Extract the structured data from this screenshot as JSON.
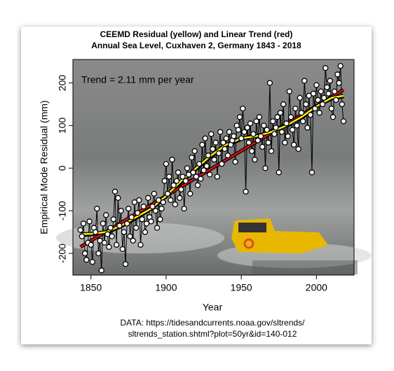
{
  "chart_data": {
    "type": "line",
    "title": "CEEMD Residual (yellow) and Linear Trend (red)",
    "subtitle": "Annual Sea Level, Cuxhaven 2, Germany 1843 - 2018",
    "x_label": "Year",
    "y_label": "Empirical Mode Residual (mm)",
    "annotation": "Trend = 2.11 mm per year",
    "source": [
      "DATA: https://tidesandcurrents.noaa.gov/sltrends/",
      "sltrends_station.shtml?plot=50yr&id=140-012"
    ],
    "xlim": [
      1838,
      2025
    ],
    "xticks": [
      1850,
      1900,
      1950,
      2000
    ],
    "ylim": [
      -251,
      255
    ],
    "yticks": [
      -200,
      -100,
      0,
      100,
      200
    ],
    "series": [
      {
        "color": "#000000",
        "x": [
          1843,
          1844,
          1845,
          1846,
          1847,
          1848,
          1849,
          1850,
          1851,
          1852,
          1853,
          1854,
          1855,
          1856,
          1857,
          1858,
          1859,
          1860,
          1861,
          1862,
          1863,
          1864,
          1865,
          1866,
          1867,
          1868,
          1869,
          1870,
          1871,
          1872,
          1873,
          1874,
          1875,
          1876,
          1877,
          1878,
          1879,
          1880,
          1881,
          1882,
          1883,
          1884,
          1885,
          1886,
          1887,
          1888,
          1889,
          1890,
          1891,
          1892,
          1893,
          1894,
          1895,
          1896,
          1897,
          1898,
          1899,
          1900,
          1901,
          1902,
          1903,
          1904,
          1905,
          1906,
          1907,
          1908,
          1909,
          1910,
          1911,
          1912,
          1913,
          1914,
          1915,
          1916,
          1917,
          1918,
          1919,
          1920,
          1921,
          1922,
          1923,
          1924,
          1925,
          1926,
          1927,
          1928,
          1929,
          1930,
          1931,
          1932,
          1933,
          1934,
          1935,
          1936,
          1937,
          1938,
          1939,
          1940,
          1941,
          1942,
          1943,
          1944,
          1945,
          1946,
          1947,
          1948,
          1949,
          1950,
          1951,
          1952,
          1953,
          1954,
          1955,
          1956,
          1957,
          1958,
          1959,
          1960,
          1961,
          1962,
          1963,
          1964,
          1965,
          1966,
          1967,
          1968,
          1969,
          1970,
          1971,
          1972,
          1973,
          1974,
          1975,
          1976,
          1977,
          1978,
          1979,
          1980,
          1981,
          1982,
          1983,
          1984,
          1985,
          1986,
          1987,
          1988,
          1989,
          1990,
          1991,
          1992,
          1993,
          1994,
          1995,
          1996,
          1997,
          1998,
          1999,
          2000,
          2001,
          2002,
          2003,
          2004,
          2005,
          2006,
          2007,
          2008,
          2009,
          2010,
          2011,
          2012,
          2013,
          2014,
          2015,
          2016,
          2017,
          2018
        ],
        "values": [
          -145,
          -160,
          -130,
          -200,
          -215,
          -175,
          -125,
          -180,
          -220,
          -140,
          -150,
          -95,
          -200,
          -170,
          -240,
          -130,
          -175,
          -110,
          -155,
          -185,
          -140,
          -160,
          -120,
          -55,
          -180,
          -70,
          -135,
          -100,
          -190,
          -150,
          -225,
          -130,
          -95,
          -160,
          -115,
          -170,
          -80,
          -140,
          -105,
          -75,
          -180,
          -120,
          -90,
          -150,
          -130,
          -70,
          -115,
          -125,
          -90,
          -60,
          -100,
          -140,
          -75,
          -120,
          -95,
          -80,
          -30,
          10,
          -60,
          -20,
          -75,
          20,
          -40,
          -85,
          -30,
          -10,
          -70,
          -50,
          -20,
          -95,
          -30,
          0,
          -15,
          -60,
          25,
          -10,
          40,
          -20,
          -40,
          10,
          -25,
          55,
          -5,
          70,
          5,
          30,
          -15,
          80,
          45,
          20,
          60,
          -20,
          35,
          85,
          10,
          60,
          45,
          70,
          30,
          85,
          55,
          65,
          75,
          15,
          100,
          90,
          120,
          70,
          140,
          85,
          -55,
          95,
          60,
          105,
          40,
          80,
          20,
          110,
          65,
          120,
          75,
          50,
          100,
          0,
          90,
          60,
          200,
          40,
          110,
          80,
          95,
          120,
          -10,
          130,
          85,
          150,
          60,
          105,
          75,
          180,
          120,
          90,
          55,
          140,
          100,
          45,
          165,
          130,
          110,
          205,
          150,
          95,
          170,
          125,
          -10,
          175,
          140,
          195,
          160,
          130,
          180,
          150,
          165,
          235,
          190,
          175,
          205,
          140,
          120,
          180,
          160,
          220,
          200,
          240,
          150,
          110
        ]
      },
      {
        "color": "#1f5fd0",
        "x": [
          1843,
          1860,
          1870,
          1880,
          1890,
          1900,
          1910,
          1920,
          1930,
          1940,
          1950,
          1955,
          1960,
          1965,
          1970,
          1975,
          1980,
          1985,
          1990,
          1995,
          2000,
          2010,
          2018
        ],
        "values": [
          -158,
          -152,
          -137,
          -117,
          -96,
          -67,
          -32,
          -2,
          28,
          52,
          68,
          74,
          76,
          80,
          88,
          95,
          100,
          105,
          118,
          130,
          145,
          163,
          168
        ]
      },
      {
        "color": "#dd1111",
        "x": [
          1843,
          2018
        ],
        "values": [
          -185,
          184
        ]
      },
      {
        "color": "#ffee00",
        "x": [
          1843,
          1850,
          1860,
          1870,
          1880,
          1890,
          1900,
          1910,
          1920,
          1930,
          1940,
          1950,
          1960,
          1970,
          1980,
          1990,
          2000,
          2010,
          2018
        ],
        "values": [
          -155,
          -154,
          -150,
          -135,
          -115,
          -95,
          -65,
          -30,
          0,
          30,
          55,
          70,
          75,
          85,
          100,
          120,
          145,
          165,
          170
        ]
      }
    ]
  }
}
